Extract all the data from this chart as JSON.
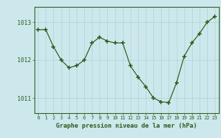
{
  "hours": [
    0,
    1,
    2,
    3,
    4,
    5,
    6,
    7,
    8,
    9,
    10,
    11,
    12,
    13,
    14,
    15,
    16,
    17,
    18,
    19,
    20,
    21,
    22,
    23
  ],
  "pressure": [
    1012.8,
    1012.8,
    1012.35,
    1012.0,
    1011.8,
    1011.85,
    1012.0,
    1012.45,
    1012.6,
    1012.5,
    1012.45,
    1012.45,
    1011.85,
    1011.55,
    1011.3,
    1011.0,
    1010.9,
    1010.88,
    1011.4,
    1012.1,
    1012.45,
    1012.7,
    1013.0,
    1013.15
  ],
  "ylim": [
    1010.6,
    1013.4
  ],
  "yticks": [
    1011,
    1012,
    1013
  ],
  "line_color": "#2d5a1b",
  "marker_color": "#2d5a1b",
  "bg_color": "#cce8ec",
  "grid_color": "#b0d0d4",
  "xlabel": "Graphe pression niveau de la mer (hPa)",
  "xlabel_color": "#2d5a1b",
  "tick_color": "#2d5a1b",
  "border_color": "#2d5a1b"
}
